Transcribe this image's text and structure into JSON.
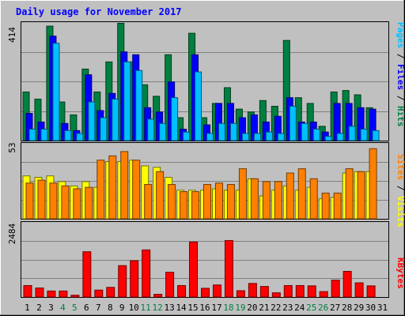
{
  "chart_data": {
    "type": "bar",
    "title": "Daily usage for November 2017",
    "categories": [
      "1",
      "2",
      "3",
      "4",
      "5",
      "6",
      "7",
      "8",
      "9",
      "10",
      "11",
      "12",
      "13",
      "14",
      "15",
      "16",
      "17",
      "18",
      "19",
      "20",
      "21",
      "22",
      "23",
      "24",
      "25",
      "26",
      "27",
      "28",
      "29",
      "30",
      "31"
    ],
    "weekend_days": [
      "4",
      "5",
      "11",
      "12",
      "18",
      "19",
      "25",
      "26"
    ],
    "axis_max_labels": {
      "hits": "414",
      "visits": "53",
      "kbytes": "2484"
    },
    "panels": [
      {
        "id": "hits-files-pages",
        "ymax": 414,
        "series": [
          {
            "name": "Hits",
            "color": "#008040",
            "values": [
              170,
              145,
              400,
              135,
              90,
              250,
              170,
              275,
              410,
              275,
              195,
              155,
              300,
              80,
              375,
              80,
              130,
              185,
              110,
              100,
              140,
              120,
              350,
              150,
              130,
              50,
              170,
              175,
              160,
              115,
              0
            ]
          },
          {
            "name": "Files",
            "color": "#0000ff",
            "values": [
              95,
              65,
              365,
              60,
              35,
              230,
              105,
              165,
              310,
              300,
              115,
              100,
              205,
              40,
              300,
              55,
              130,
              130,
              80,
              90,
              65,
              85,
              150,
              65,
              65,
              30,
              130,
              130,
              115,
              110,
              0
            ]
          },
          {
            "name": "Pages",
            "color": "#00c0ff",
            "values": [
              40,
              40,
              340,
              35,
              25,
              135,
              80,
              145,
              275,
              245,
              75,
              60,
              150,
              30,
              240,
              25,
              60,
              60,
              25,
              25,
              30,
              25,
              120,
              60,
              40,
              15,
              25,
              50,
              40,
              35,
              0
            ]
          }
        ]
      },
      {
        "id": "visits-sites",
        "ymax": 53,
        "series": [
          {
            "name": "Visits",
            "color": "#ffff00",
            "values": [
              30,
              29,
              30,
              26,
              23,
              26,
              22,
              40,
              40,
              41,
              37,
              36,
              29,
              20,
              20,
              20,
              21,
              20,
              20,
              28,
              16,
              20,
              23,
              20,
              22,
              14,
              15,
              32,
              33,
              33,
              0
            ]
          },
          {
            "name": "Sites",
            "color": "#ff8000",
            "values": [
              25,
              27,
              25,
              23,
              21,
              22,
              41,
              44,
              47,
              41,
              24,
              33,
              24,
              19,
              19,
              24,
              25,
              24,
              35,
              28,
              26,
              26,
              32,
              35,
              28,
              18,
              18,
              35,
              33,
              49,
              0
            ]
          }
        ]
      },
      {
        "id": "kbytes",
        "ymax": 2484,
        "series": [
          {
            "name": "KBytes",
            "color": "#ff0000",
            "values": [
              380,
              300,
              200,
              200,
              60,
              1500,
              230,
              320,
              1040,
              1200,
              1560,
              90,
              820,
              380,
              1820,
              290,
              400,
              1870,
              210,
              450,
              350,
              140,
              380,
              380,
              370,
              180,
              560,
              850,
              470,
              370,
              0
            ]
          }
        ]
      }
    ]
  }
}
